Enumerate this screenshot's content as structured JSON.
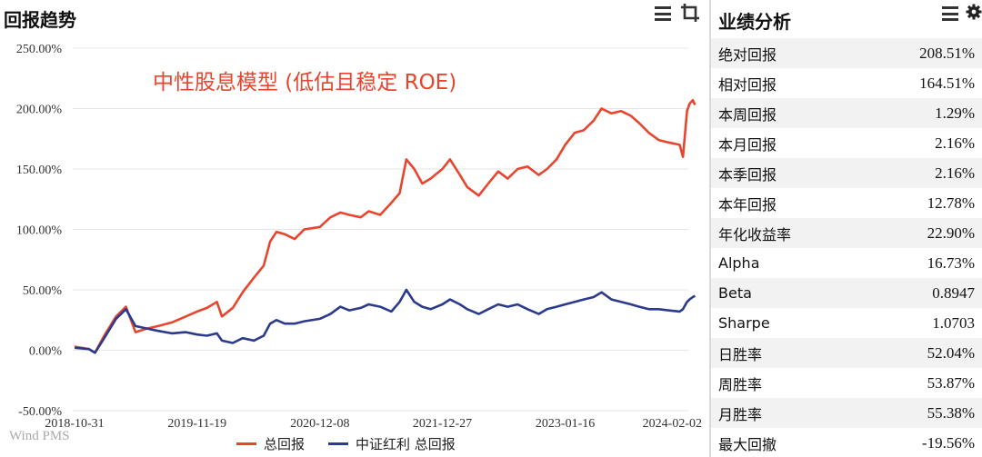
{
  "left_panel": {
    "title": "回报趋势"
  },
  "right_panel": {
    "title": "业绩分析"
  },
  "icons": {
    "menu": "menu-icon",
    "crop": "crop-icon",
    "settings": "gear-icon"
  },
  "watermark": "Wind PMS",
  "colors": {
    "total_return": "#e8452e",
    "benchmark": "#2b3a8c",
    "grid": "#e6e6e6"
  },
  "stats": [
    {
      "label": "绝对回报",
      "value": "208.51%"
    },
    {
      "label": "相对回报",
      "value": "164.51%"
    },
    {
      "label": "本周回报",
      "value": "1.29%"
    },
    {
      "label": "本月回报",
      "value": "2.16%"
    },
    {
      "label": "本季回报",
      "value": "2.16%"
    },
    {
      "label": "本年回报",
      "value": "12.78%"
    },
    {
      "label": "年化收益率",
      "value": "22.90%"
    },
    {
      "label": "Alpha",
      "value": "16.73%"
    },
    {
      "label": "Beta",
      "value": "0.8947"
    },
    {
      "label": "Sharpe",
      "value": "1.0703"
    },
    {
      "label": "日胜率",
      "value": "52.04%"
    },
    {
      "label": "周胜率",
      "value": "53.87%"
    },
    {
      "label": "月胜率",
      "value": "55.38%"
    },
    {
      "label": "最大回撤",
      "value": "-19.56%"
    }
  ],
  "chart_data": {
    "type": "line",
    "title": "",
    "annotation": "中性股息模型 (低估且稳定 ROE)",
    "xlabel": "",
    "ylabel": "",
    "x_ticks": [
      "2018-10-31",
      "2019-11-19",
      "2020-12-08",
      "2021-12-27",
      "2023-01-16",
      "2024-02-02"
    ],
    "y_ticks": [
      "250.00%",
      "200.00%",
      "150.00%",
      "100.00%",
      "50.00%",
      "0.00%",
      "-50.00%"
    ],
    "ylim": [
      -50,
      250
    ],
    "xlim": [
      "2018-10-31",
      "2024-02-02"
    ],
    "grid": "horizontal",
    "legend_position": "bottom",
    "series": [
      {
        "name": "总回报",
        "points": [
          [
            "2018-10-31",
            3
          ],
          [
            "2018-12-15",
            1
          ],
          [
            "2019-01-03",
            -2
          ],
          [
            "2019-02-01",
            12
          ],
          [
            "2019-03-10",
            28
          ],
          [
            "2019-04-10",
            36
          ],
          [
            "2019-05-10",
            15
          ],
          [
            "2019-06-15",
            18
          ],
          [
            "2019-07-20",
            20
          ],
          [
            "2019-09-01",
            23
          ],
          [
            "2019-10-15",
            28
          ],
          [
            "2019-11-19",
            32
          ],
          [
            "2019-12-20",
            35
          ],
          [
            "2020-01-20",
            40
          ],
          [
            "2020-02-05",
            28
          ],
          [
            "2020-03-10",
            35
          ],
          [
            "2020-04-10",
            48
          ],
          [
            "2020-05-15",
            60
          ],
          [
            "2020-06-15",
            70
          ],
          [
            "2020-07-05",
            90
          ],
          [
            "2020-07-25",
            98
          ],
          [
            "2020-08-20",
            96
          ],
          [
            "2020-09-20",
            92
          ],
          [
            "2020-10-20",
            100
          ],
          [
            "2020-12-08",
            102
          ],
          [
            "2021-01-10",
            110
          ],
          [
            "2021-02-10",
            114
          ],
          [
            "2021-03-10",
            112
          ],
          [
            "2021-04-15",
            110
          ],
          [
            "2021-05-10",
            115
          ],
          [
            "2021-06-15",
            112
          ],
          [
            "2021-07-20",
            122
          ],
          [
            "2021-08-15",
            130
          ],
          [
            "2021-09-05",
            158
          ],
          [
            "2021-09-30",
            150
          ],
          [
            "2021-10-25",
            138
          ],
          [
            "2021-11-20",
            142
          ],
          [
            "2021-12-27",
            150
          ],
          [
            "2022-01-20",
            158
          ],
          [
            "2022-02-20",
            145
          ],
          [
            "2022-03-15",
            135
          ],
          [
            "2022-04-20",
            128
          ],
          [
            "2022-05-20",
            138
          ],
          [
            "2022-06-20",
            148
          ],
          [
            "2022-07-20",
            142
          ],
          [
            "2022-08-20",
            150
          ],
          [
            "2022-09-20",
            152
          ],
          [
            "2022-10-25",
            145
          ],
          [
            "2022-11-20",
            150
          ],
          [
            "2022-12-20",
            158
          ],
          [
            "2023-01-16",
            170
          ],
          [
            "2023-02-15",
            180
          ],
          [
            "2023-03-15",
            182
          ],
          [
            "2023-04-15",
            190
          ],
          [
            "2023-05-10",
            200
          ],
          [
            "2023-06-10",
            196
          ],
          [
            "2023-07-10",
            198
          ],
          [
            "2023-08-10",
            194
          ],
          [
            "2023-09-05",
            188
          ],
          [
            "2023-10-05",
            180
          ],
          [
            "2023-11-05",
            174
          ],
          [
            "2023-12-05",
            172
          ],
          [
            "2024-01-10",
            170
          ],
          [
            "2024-01-20",
            160
          ],
          [
            "2024-02-02",
            198
          ],
          [
            "2024-02-10",
            204
          ],
          [
            "2024-02-20",
            207
          ],
          [
            "2024-02-27",
            203
          ]
        ]
      },
      {
        "name": "中证红利 总回报",
        "points": [
          [
            "2018-10-31",
            2
          ],
          [
            "2018-12-15",
            1
          ],
          [
            "2019-01-03",
            -2
          ],
          [
            "2019-02-01",
            10
          ],
          [
            "2019-03-10",
            26
          ],
          [
            "2019-04-10",
            34
          ],
          [
            "2019-05-10",
            20
          ],
          [
            "2019-06-15",
            18
          ],
          [
            "2019-07-20",
            16
          ],
          [
            "2019-09-01",
            14
          ],
          [
            "2019-10-15",
            15
          ],
          [
            "2019-11-19",
            13
          ],
          [
            "2019-12-20",
            12
          ],
          [
            "2020-01-20",
            14
          ],
          [
            "2020-02-05",
            8
          ],
          [
            "2020-03-10",
            6
          ],
          [
            "2020-04-10",
            10
          ],
          [
            "2020-05-15",
            8
          ],
          [
            "2020-06-15",
            12
          ],
          [
            "2020-07-05",
            22
          ],
          [
            "2020-07-25",
            25
          ],
          [
            "2020-08-20",
            22
          ],
          [
            "2020-09-20",
            22
          ],
          [
            "2020-10-20",
            24
          ],
          [
            "2020-12-08",
            26
          ],
          [
            "2021-01-10",
            30
          ],
          [
            "2021-02-10",
            36
          ],
          [
            "2021-03-10",
            33
          ],
          [
            "2021-04-15",
            35
          ],
          [
            "2021-05-10",
            38
          ],
          [
            "2021-06-15",
            36
          ],
          [
            "2021-07-20",
            32
          ],
          [
            "2021-08-15",
            40
          ],
          [
            "2021-09-05",
            50
          ],
          [
            "2021-09-30",
            40
          ],
          [
            "2021-10-25",
            36
          ],
          [
            "2021-11-20",
            34
          ],
          [
            "2021-12-27",
            38
          ],
          [
            "2022-01-20",
            42
          ],
          [
            "2022-02-20",
            38
          ],
          [
            "2022-03-15",
            34
          ],
          [
            "2022-04-20",
            30
          ],
          [
            "2022-05-20",
            34
          ],
          [
            "2022-06-20",
            38
          ],
          [
            "2022-07-20",
            36
          ],
          [
            "2022-08-20",
            38
          ],
          [
            "2022-09-20",
            34
          ],
          [
            "2022-10-25",
            30
          ],
          [
            "2022-11-20",
            34
          ],
          [
            "2022-12-20",
            36
          ],
          [
            "2023-01-16",
            38
          ],
          [
            "2023-02-15",
            40
          ],
          [
            "2023-03-15",
            42
          ],
          [
            "2023-04-15",
            44
          ],
          [
            "2023-05-10",
            48
          ],
          [
            "2023-06-10",
            42
          ],
          [
            "2023-07-10",
            40
          ],
          [
            "2023-08-10",
            38
          ],
          [
            "2023-09-05",
            36
          ],
          [
            "2023-10-05",
            34
          ],
          [
            "2023-11-05",
            34
          ],
          [
            "2023-12-05",
            33
          ],
          [
            "2024-01-10",
            32
          ],
          [
            "2024-01-20",
            34
          ],
          [
            "2024-02-02",
            40
          ],
          [
            "2024-02-10",
            42
          ],
          [
            "2024-02-20",
            44
          ],
          [
            "2024-02-27",
            45
          ]
        ]
      }
    ]
  }
}
